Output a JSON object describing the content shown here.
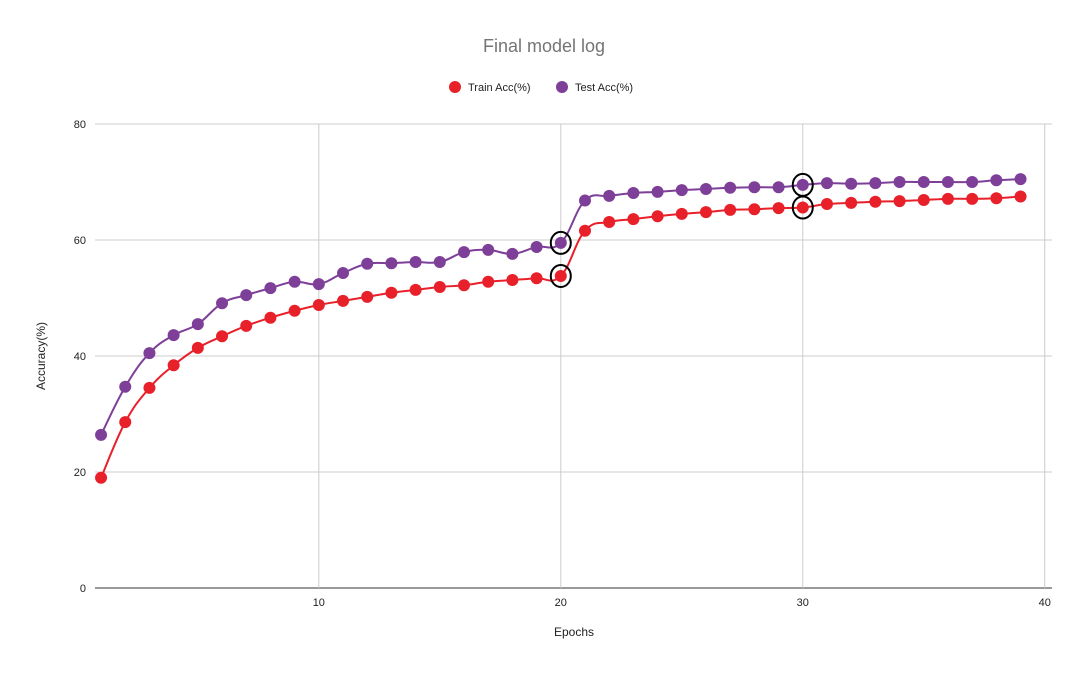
{
  "chart_data": {
    "type": "line",
    "title": "Final model log",
    "xlabel": "Epochs",
    "ylabel": "Accuracy(%)",
    "xlim": [
      0.75,
      40.3
    ],
    "ylim": [
      0,
      80
    ],
    "xticks": [
      10,
      20,
      30,
      40
    ],
    "yticks": [
      0,
      20,
      40,
      60,
      80
    ],
    "grid": true,
    "legend_position": "top",
    "x": [
      1,
      2,
      3,
      4,
      5,
      6,
      7,
      8,
      9,
      10,
      11,
      12,
      13,
      14,
      15,
      16,
      17,
      18,
      19,
      20,
      21,
      22,
      23,
      24,
      25,
      26,
      27,
      28,
      29,
      30,
      31,
      32,
      33,
      34,
      35,
      36,
      37,
      38,
      39
    ],
    "series": [
      {
        "name": "Train Acc(%)",
        "color": "#e8202a",
        "values": [
          19.0,
          28.6,
          34.5,
          38.4,
          41.4,
          43.4,
          45.2,
          46.6,
          47.8,
          48.8,
          49.5,
          50.2,
          50.9,
          51.4,
          51.9,
          52.2,
          52.8,
          53.1,
          53.4,
          53.8,
          61.6,
          63.1,
          63.6,
          64.1,
          64.5,
          64.8,
          65.2,
          65.3,
          65.5,
          65.6,
          66.2,
          66.4,
          66.6,
          66.7,
          66.9,
          67.1,
          67.1,
          67.2,
          67.5
        ]
      },
      {
        "name": "Test Acc(%)",
        "color": "#7e3f98",
        "values": [
          26.4,
          34.7,
          40.5,
          43.6,
          45.5,
          49.1,
          50.5,
          51.7,
          52.8,
          52.4,
          54.3,
          55.9,
          56.0,
          56.2,
          56.2,
          57.9,
          58.3,
          57.6,
          58.8,
          59.5,
          66.8,
          67.6,
          68.1,
          68.3,
          68.6,
          68.8,
          69.0,
          69.1,
          69.1,
          69.5,
          69.8,
          69.7,
          69.8,
          70.0,
          70.0,
          70.0,
          70.0,
          70.3,
          70.5
        ]
      }
    ],
    "annotations": [
      {
        "type": "circle",
        "series": 0,
        "x": 20
      },
      {
        "type": "circle",
        "series": 1,
        "x": 20
      },
      {
        "type": "circle",
        "series": 0,
        "x": 30
      },
      {
        "type": "circle",
        "series": 1,
        "x": 30
      }
    ]
  }
}
